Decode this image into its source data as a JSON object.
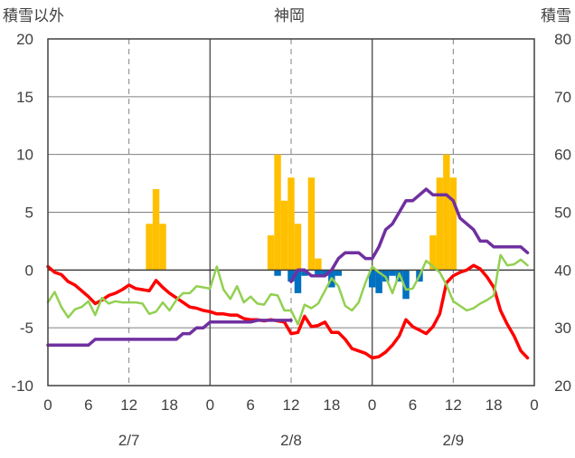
{
  "chart_data": {
    "type": "bar+line",
    "title": "神岡",
    "left_axis_label": "積雪以外",
    "right_axis_label": "積雪",
    "left_ylim": [
      -10,
      20
    ],
    "left_yticks": [
      "-10",
      "-5",
      "0",
      "5",
      "10",
      "15",
      "20"
    ],
    "right_ylim": [
      20,
      80
    ],
    "right_yticks": [
      "20",
      "30",
      "40",
      "50",
      "60",
      "70",
      "80"
    ],
    "x_hours_total": 72,
    "x_tick_labels": [
      "0",
      "6",
      "12",
      "18",
      "0",
      "6",
      "12",
      "18",
      "0",
      "6",
      "12",
      "18",
      "0"
    ],
    "date_labels": [
      "2/7",
      "2/8",
      "2/9"
    ],
    "grid": true,
    "colors": {
      "snowfall_bar": "#FFC000",
      "negative_bar": "#0070C0",
      "temperature": "#FF0000",
      "secondary_line": "#92D050",
      "snow_depth": "#7030A0",
      "axis": "#404040",
      "grid": "#808080"
    },
    "series": [
      {
        "kind": "bar",
        "axis": "left",
        "color_key": "snowfall_bar",
        "points": [
          [
            15,
            4
          ],
          [
            16,
            7
          ],
          [
            17,
            4
          ],
          [
            33,
            3
          ],
          [
            34,
            10
          ],
          [
            35,
            6
          ],
          [
            36,
            8
          ],
          [
            37,
            4
          ],
          [
            39,
            8
          ],
          [
            40,
            1
          ],
          [
            57,
            3
          ],
          [
            58,
            8
          ],
          [
            59,
            10
          ],
          [
            60,
            8
          ]
        ]
      },
      {
        "kind": "bar",
        "axis": "left",
        "color_key": "negative_bar",
        "points": [
          [
            34,
            -0.5
          ],
          [
            36,
            -1
          ],
          [
            37,
            -2
          ],
          [
            38,
            -0.5
          ],
          [
            40,
            -0.5
          ],
          [
            41,
            -0.5
          ],
          [
            42,
            -1.5
          ],
          [
            43,
            -0.5
          ],
          [
            48,
            -1.5
          ],
          [
            49,
            -2
          ],
          [
            50,
            -1
          ],
          [
            51,
            -0.5
          ],
          [
            52,
            -1
          ],
          [
            53,
            -2.5
          ],
          [
            55,
            -1
          ]
        ]
      },
      {
        "kind": "line",
        "axis": "left",
        "color_key": "temperature",
        "points": [
          [
            0,
            0.3
          ],
          [
            1,
            -0.2
          ],
          [
            2,
            -0.4
          ],
          [
            3,
            -1
          ],
          [
            4,
            -1.3
          ],
          [
            5,
            -1.8
          ],
          [
            6,
            -2.3
          ],
          [
            7,
            -2.9
          ],
          [
            8,
            -2.6
          ],
          [
            9,
            -2.2
          ],
          [
            10,
            -2
          ],
          [
            11,
            -1.7
          ],
          [
            12,
            -1.3
          ],
          [
            13,
            -1.6
          ],
          [
            14,
            -1.7
          ],
          [
            15,
            -1.8
          ],
          [
            16,
            -0.9
          ],
          [
            17,
            -1.5
          ],
          [
            18,
            -2
          ],
          [
            19,
            -2.4
          ],
          [
            20,
            -2.8
          ],
          [
            21,
            -3.2
          ],
          [
            22,
            -3.3
          ],
          [
            23,
            -3.5
          ],
          [
            24,
            -3.6
          ],
          [
            25,
            -3.8
          ],
          [
            26,
            -3.8
          ],
          [
            27,
            -3.9
          ],
          [
            28,
            -3.9
          ],
          [
            29,
            -4.2
          ],
          [
            30,
            -4.3
          ],
          [
            31,
            -4.3
          ],
          [
            32,
            -4.4
          ],
          [
            33,
            -4.3
          ],
          [
            34,
            -4.4
          ],
          [
            35,
            -4.5
          ],
          [
            36,
            -5.5
          ],
          [
            37,
            -5.4
          ],
          [
            38,
            -4
          ],
          [
            39,
            -4.9
          ],
          [
            40,
            -4.8
          ],
          [
            41,
            -4.5
          ],
          [
            42,
            -5.4
          ],
          [
            43,
            -5.4
          ],
          [
            44,
            -6
          ],
          [
            45,
            -6.8
          ],
          [
            46,
            -7
          ],
          [
            47,
            -7.2
          ],
          [
            48,
            -7.6
          ],
          [
            49,
            -7.5
          ],
          [
            50,
            -7.1
          ],
          [
            51,
            -6.5
          ],
          [
            52,
            -5.7
          ],
          [
            53,
            -4.3
          ],
          [
            54,
            -4.9
          ],
          [
            55,
            -5.2
          ],
          [
            56,
            -5.5
          ],
          [
            57,
            -4.9
          ],
          [
            58,
            -3.8
          ],
          [
            59,
            -1.1
          ],
          [
            60,
            -0.5
          ],
          [
            61,
            -0.2
          ],
          [
            62,
            0
          ],
          [
            63,
            0.4
          ],
          [
            64,
            0.1
          ],
          [
            65,
            -0.6
          ],
          [
            66,
            -1.5
          ],
          [
            67,
            -3.5
          ],
          [
            68,
            -4.7
          ],
          [
            69,
            -5.7
          ],
          [
            70,
            -7
          ],
          [
            71,
            -7.6
          ]
        ]
      },
      {
        "kind": "line",
        "axis": "left",
        "color_key": "secondary_line",
        "points": [
          [
            0,
            -2.8
          ],
          [
            1,
            -1.9
          ],
          [
            2,
            -3.2
          ],
          [
            3,
            -4.1
          ],
          [
            4,
            -3.4
          ],
          [
            5,
            -3.2
          ],
          [
            6,
            -2.7
          ],
          [
            7,
            -3.9
          ],
          [
            8,
            -2.4
          ],
          [
            9,
            -2.9
          ],
          [
            10,
            -2.7
          ],
          [
            11,
            -2.8
          ],
          [
            12,
            -2.8
          ],
          [
            13,
            -2.8
          ],
          [
            14,
            -2.9
          ],
          [
            15,
            -3.8
          ],
          [
            16,
            -3.6
          ],
          [
            17,
            -2.8
          ],
          [
            18,
            -3.5
          ],
          [
            19,
            -2.6
          ],
          [
            20,
            -2
          ],
          [
            21,
            -2
          ],
          [
            22,
            -1.4
          ],
          [
            23,
            -1.5
          ],
          [
            24,
            -1.6
          ],
          [
            25,
            0.3
          ],
          [
            26,
            -1.7
          ],
          [
            27,
            -2.5
          ],
          [
            28,
            -1.4
          ],
          [
            29,
            -2.8
          ],
          [
            30,
            -2.3
          ],
          [
            31,
            -2.9
          ],
          [
            32,
            -3
          ],
          [
            33,
            -2.1
          ],
          [
            34,
            -2.2
          ],
          [
            35,
            -3.5
          ],
          [
            36,
            -3.5
          ],
          [
            37,
            -4.7
          ],
          [
            38,
            -3
          ],
          [
            39,
            -3.3
          ],
          [
            40,
            -2.9
          ],
          [
            41,
            -1.8
          ],
          [
            42,
            -0.7
          ],
          [
            43,
            -1.4
          ],
          [
            44,
            -3.1
          ],
          [
            45,
            -3.5
          ],
          [
            46,
            -2.8
          ],
          [
            47,
            -1.1
          ],
          [
            48,
            0.3
          ],
          [
            49,
            -0.2
          ],
          [
            50,
            -0.6
          ],
          [
            51,
            -2
          ],
          [
            52,
            -0.3
          ],
          [
            53,
            -1.7
          ],
          [
            54,
            -1.6
          ],
          [
            55,
            -0.5
          ],
          [
            56,
            0.8
          ],
          [
            57,
            0.3
          ],
          [
            58,
            -0.2
          ],
          [
            59,
            -1.3
          ],
          [
            60,
            -2.7
          ],
          [
            61,
            -3.1
          ],
          [
            62,
            -3.5
          ],
          [
            63,
            -3.3
          ],
          [
            64,
            -2.9
          ],
          [
            65,
            -2.6
          ],
          [
            66,
            -2.2
          ],
          [
            67,
            1.3
          ],
          [
            68,
            0.4
          ],
          [
            69,
            0.5
          ],
          [
            70,
            0.9
          ],
          [
            71,
            0.4
          ]
        ]
      },
      {
        "kind": "line",
        "axis": "right",
        "color_key": "snow_depth",
        "segments": [
          [
            [
              0,
              27
            ],
            [
              6,
              27
            ],
            [
              7,
              28
            ],
            [
              12,
              28
            ],
            [
              18,
              28
            ],
            [
              19,
              28
            ],
            [
              20,
              29
            ],
            [
              21,
              29
            ],
            [
              22,
              30
            ],
            [
              23,
              30
            ],
            [
              24,
              31
            ],
            [
              30,
              31
            ],
            [
              31,
              31.3
            ],
            [
              36,
              31.3
            ]
          ],
          [
            [
              36,
              38
            ],
            [
              37,
              40
            ],
            [
              38,
              40
            ],
            [
              39,
              39
            ],
            [
              40,
              39
            ],
            [
              41,
              39
            ],
            [
              42,
              40
            ],
            [
              43,
              42
            ],
            [
              44,
              43
            ],
            [
              45,
              43
            ],
            [
              46,
              43
            ],
            [
              47,
              42
            ],
            [
              48,
              42
            ],
            [
              49,
              44
            ],
            [
              50,
              47
            ],
            [
              51,
              48
            ],
            [
              52,
              50
            ],
            [
              53,
              52
            ],
            [
              54,
              52
            ],
            [
              55,
              53
            ],
            [
              56,
              54
            ],
            [
              57,
              53
            ],
            [
              58,
              53
            ],
            [
              59,
              53
            ],
            [
              60,
              52
            ],
            [
              61,
              49
            ],
            [
              62,
              48
            ],
            [
              63,
              47
            ],
            [
              64,
              45
            ],
            [
              65,
              45
            ],
            [
              66,
              44
            ],
            [
              67,
              44
            ],
            [
              68,
              44
            ],
            [
              69,
              44
            ],
            [
              70,
              44
            ],
            [
              71,
              43
            ]
          ]
        ]
      }
    ]
  }
}
